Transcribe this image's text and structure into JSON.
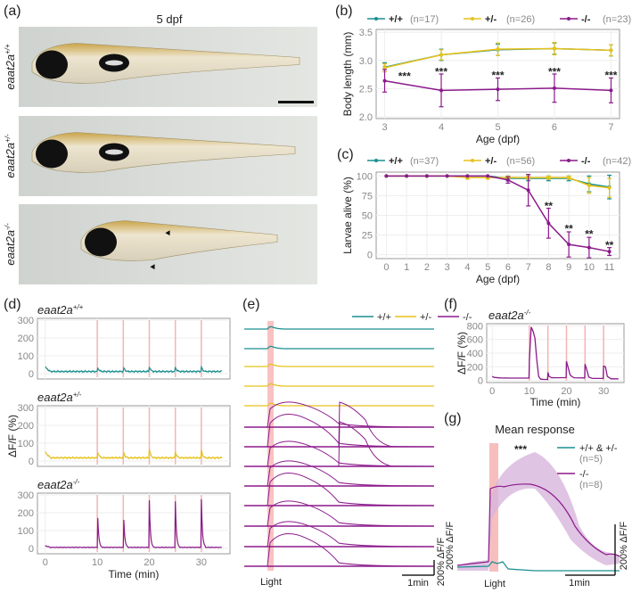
{
  "figure": {
    "panel_labels": [
      "(a)",
      "(b)",
      "(c)",
      "(d)",
      "(e)",
      "(f)",
      "(g)"
    ]
  },
  "panel_a": {
    "title": "5 dpf",
    "rows": [
      {
        "genotype": "eaat2a",
        "sup": "+/+"
      },
      {
        "genotype": "eaat2a",
        "sup": "+/-"
      },
      {
        "genotype": "eaat2a",
        "sup": "-/-"
      }
    ],
    "annotation": "arrowheads mark defects in -/- larva",
    "scale_bar": true
  },
  "colors": {
    "wt": "#1a8f8f",
    "het": "#e6c21a",
    "hom": "#8b1a8b",
    "light": "#f6b3b3",
    "hom_band": "#d8b5dc"
  },
  "chart_data": [
    {
      "id": "b",
      "type": "line",
      "title": "",
      "xlabel": "Age (dpf)",
      "ylabel": "Body length (mm)",
      "x": [
        3,
        4,
        5,
        6,
        7
      ],
      "xlim": [
        2.85,
        7.15
      ],
      "ylim": [
        1.97,
        3.55
      ],
      "yticks": [
        "2.0",
        "2.5",
        "3.0",
        "3.5"
      ],
      "xticks": [
        "3",
        "4",
        "5",
        "6",
        "7"
      ],
      "grid": true,
      "legend": "top",
      "series": [
        {
          "name": "+/+",
          "n": "(n=17)",
          "color": "wt",
          "values": [
            2.88,
            3.1,
            3.19,
            3.21,
            3.18
          ],
          "err": [
            0.08,
            0.1,
            0.1,
            0.1,
            0.1
          ]
        },
        {
          "name": "+/-",
          "n": "(n=26)",
          "color": "het",
          "values": [
            2.87,
            3.1,
            3.2,
            3.21,
            3.18
          ],
          "err": [
            0.07,
            0.09,
            0.11,
            0.11,
            0.1
          ]
        },
        {
          "name": "-/-",
          "n": "(n=23)",
          "color": "hom",
          "values": [
            2.64,
            2.47,
            2.49,
            2.51,
            2.47
          ],
          "err": [
            0.2,
            0.29,
            0.2,
            0.25,
            0.22
          ]
        }
      ],
      "annotations": [
        {
          "x": 3,
          "y": 2.72,
          "text": "***",
          "dx": 0.35
        },
        {
          "x": 4,
          "y": 2.8,
          "text": "***"
        },
        {
          "x": 5,
          "y": 2.74,
          "text": "***"
        },
        {
          "x": 6,
          "y": 2.8,
          "text": "***"
        },
        {
          "x": 7,
          "y": 2.74,
          "text": "***"
        }
      ]
    },
    {
      "id": "c",
      "type": "line",
      "title": "",
      "xlabel": "Age (dpf)",
      "ylabel": "Larvae alive (%)",
      "x": [
        0,
        1,
        2,
        3,
        4,
        5,
        6,
        7,
        8,
        9,
        10,
        11
      ],
      "xlim": [
        -0.5,
        11.5
      ],
      "ylim": [
        -5,
        105
      ],
      "yticks": [
        "0",
        "25",
        "50",
        "75",
        "100"
      ],
      "xticks": [
        "0",
        "1",
        "2",
        "3",
        "4",
        "5",
        "6",
        "7",
        "8",
        "9",
        "10",
        "11"
      ],
      "grid": true,
      "legend": "top",
      "series": [
        {
          "name": "+/+",
          "n": "(n=37)",
          "color": "wt",
          "values": [
            100,
            100,
            100,
            100,
            100,
            100,
            97,
            97,
            97,
            97,
            90,
            86
          ],
          "err": [
            0,
            0,
            0,
            0,
            0,
            0,
            3,
            3,
            3,
            3,
            10,
            15
          ]
        },
        {
          "name": "+/-",
          "n": "(n=56)",
          "color": "het",
          "values": [
            100,
            100,
            100,
            100,
            98,
            98,
            98,
            98,
            98,
            98,
            88,
            85
          ],
          "err": [
            0,
            0,
            0,
            0,
            2,
            2,
            2,
            2,
            2,
            2,
            10,
            12
          ]
        },
        {
          "name": "-/-",
          "n": "(n=42)",
          "color": "hom",
          "values": [
            100,
            100,
            100,
            100,
            100,
            100,
            95,
            82,
            40,
            13,
            9,
            4
          ],
          "err": [
            0,
            0,
            0,
            0,
            0,
            0,
            4,
            20,
            19,
            16,
            13,
            5
          ]
        }
      ],
      "annotations": [
        {
          "x": 8,
          "y": 62,
          "text": "**"
        },
        {
          "x": 9,
          "y": 33,
          "text": "**"
        },
        {
          "x": 10,
          "y": 26,
          "text": "**"
        },
        {
          "x": 11,
          "y": 12,
          "text": "**"
        }
      ]
    },
    {
      "id": "d",
      "type": "line",
      "xlabel": "Time (min)",
      "ylabel": "ΔF/F (%)",
      "xlim": [
        -1.5,
        35.5
      ],
      "ylim": [
        -30,
        310
      ],
      "yticks": [
        "0",
        "100",
        "200",
        "300"
      ],
      "xticks": [
        "0",
        "10",
        "20",
        "30"
      ],
      "light_pulses_min": [
        10,
        15,
        20,
        25,
        30
      ],
      "grid": true,
      "panels": [
        {
          "genotype": "eaat2a",
          "sup": "+/+",
          "color": "wt",
          "baseline": 12,
          "peaks": [
            45,
            42,
            40,
            38,
            38
          ],
          "start": 35
        },
        {
          "genotype": "eaat2a",
          "sup": "+/-",
          "color": "het",
          "baseline": 18,
          "peaks": [
            70,
            62,
            70,
            55,
            62
          ],
          "start": 48
        },
        {
          "genotype": "eaat2a",
          "sup": "-/-",
          "color": "hom",
          "baseline": 6,
          "peaks": [
            280,
            260,
            270,
            265,
            275
          ],
          "start": 15
        }
      ]
    },
    {
      "id": "e",
      "type": "line",
      "legend": [
        {
          "name": "+/+",
          "color": "wt"
        },
        {
          "name": "+/-",
          "color": "het"
        },
        {
          "name": "-/-",
          "color": "hom"
        }
      ],
      "stimulus_label": "Light",
      "scale_x": "1min",
      "scale_y": "200% ΔF/F",
      "traces": [
        {
          "color": "wt",
          "count": 1
        },
        {
          "color": "wt",
          "count": 1
        },
        {
          "color": "het",
          "count": 1
        },
        {
          "color": "het",
          "count": 1
        },
        {
          "color": "het",
          "count": 1
        },
        {
          "color": "hom",
          "count": 1
        },
        {
          "color": "hom",
          "count": 1
        },
        {
          "color": "hom",
          "count": 1
        },
        {
          "color": "hom",
          "count": 1
        },
        {
          "color": "hom",
          "count": 1
        },
        {
          "color": "hom",
          "count": 1
        },
        {
          "color": "hom",
          "count": 1
        },
        {
          "color": "hom",
          "count": 1
        }
      ]
    },
    {
      "id": "f",
      "type": "line",
      "title_genotype": "eaat2a",
      "title_sup": "-/-",
      "xlabel": "Time (min)",
      "ylabel": "ΔF/F (%)",
      "xlim": [
        -1.5,
        35.5
      ],
      "ylim": [
        -30,
        830
      ],
      "yticks": [
        "0",
        "200",
        "400",
        "600",
        "800"
      ],
      "xticks": [
        "0",
        "10",
        "20",
        "30"
      ],
      "light_pulses_min": [
        10,
        15,
        20,
        25,
        30
      ],
      "grid": true,
      "points": [
        [
          0,
          60
        ],
        [
          0.5,
          45
        ],
        [
          2,
          38
        ],
        [
          5,
          35
        ],
        [
          9.9,
          35
        ],
        [
          10,
          300
        ],
        [
          10.5,
          780
        ],
        [
          11,
          720
        ],
        [
          11.5,
          620
        ],
        [
          12,
          300
        ],
        [
          12.5,
          60
        ],
        [
          13,
          20
        ],
        [
          14,
          15
        ],
        [
          14.9,
          15
        ],
        [
          15,
          120
        ],
        [
          15.3,
          60
        ],
        [
          16,
          40
        ],
        [
          19.9,
          42
        ],
        [
          20,
          280
        ],
        [
          20.5,
          180
        ],
        [
          21,
          80
        ],
        [
          22,
          40
        ],
        [
          24.9,
          38
        ],
        [
          25,
          240
        ],
        [
          25.5,
          150
        ],
        [
          26,
          50
        ],
        [
          27,
          30
        ],
        [
          29.9,
          30
        ],
        [
          30,
          210
        ],
        [
          30.5,
          200
        ],
        [
          31,
          60
        ],
        [
          32,
          25
        ],
        [
          34,
          25
        ]
      ]
    },
    {
      "id": "g",
      "type": "area",
      "title": "Mean response",
      "annotation": "***",
      "stimulus_label": "Light",
      "scale_x": "1min",
      "scale_y": "200% ΔF/F",
      "legend": [
        {
          "name": "+/+ & +/-",
          "n": "(n=5)",
          "color": "wt"
        },
        {
          "name": "-/-",
          "n": "(n=8)",
          "color": "hom"
        }
      ]
    }
  ]
}
